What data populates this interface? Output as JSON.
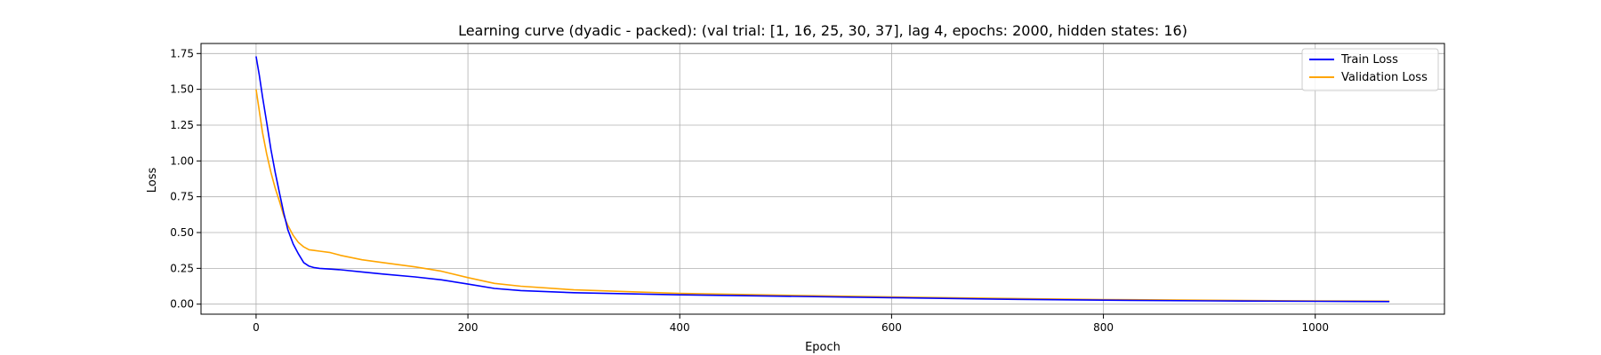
{
  "chart_data": {
    "type": "line",
    "title": "Learning curve (dyadic - packed): (val trial: [1, 16, 25, 30, 37], lag 4, epochs: 2000, hidden states: 16)",
    "xlabel": "Epoch",
    "ylabel": "Loss",
    "xlim": [
      -52,
      1122
    ],
    "ylim": [
      -0.07,
      1.82
    ],
    "xticks": [
      0,
      200,
      400,
      600,
      800,
      1000
    ],
    "yticks": [
      0.0,
      0.25,
      0.5,
      0.75,
      1.0,
      1.25,
      1.5,
      1.75
    ],
    "xtick_labels": [
      "0",
      "200",
      "400",
      "600",
      "800",
      "1000"
    ],
    "ytick_labels": [
      "0.00",
      "0.25",
      "0.50",
      "0.75",
      "1.00",
      "1.25",
      "1.50",
      "1.75"
    ],
    "grid": true,
    "legend_position": "top-right",
    "series": [
      {
        "name": "Train Loss",
        "color": "#0000ff",
        "x": [
          0,
          3,
          6,
          10,
          14,
          18,
          22,
          26,
          30,
          35,
          40,
          45,
          50,
          55,
          60,
          70,
          80,
          100,
          120,
          150,
          175,
          200,
          225,
          250,
          300,
          400,
          500,
          600,
          700,
          800,
          900,
          1000,
          1070
        ],
        "y": [
          1.73,
          1.6,
          1.45,
          1.27,
          1.08,
          0.92,
          0.78,
          0.64,
          0.52,
          0.42,
          0.35,
          0.29,
          0.265,
          0.255,
          0.25,
          0.245,
          0.24,
          0.225,
          0.21,
          0.19,
          0.17,
          0.14,
          0.11,
          0.095,
          0.08,
          0.065,
          0.055,
          0.045,
          0.035,
          0.028,
          0.023,
          0.02,
          0.018
        ]
      },
      {
        "name": "Validation Loss",
        "color": "#ffa500",
        "x": [
          0,
          3,
          6,
          10,
          14,
          18,
          22,
          26,
          30,
          35,
          40,
          45,
          50,
          55,
          60,
          70,
          80,
          100,
          120,
          150,
          175,
          200,
          225,
          250,
          300,
          400,
          500,
          600,
          700,
          800,
          900,
          1000,
          1070
        ],
        "y": [
          1.5,
          1.35,
          1.2,
          1.05,
          0.92,
          0.81,
          0.72,
          0.62,
          0.55,
          0.48,
          0.43,
          0.4,
          0.38,
          0.375,
          0.37,
          0.36,
          0.34,
          0.31,
          0.29,
          0.26,
          0.23,
          0.185,
          0.145,
          0.125,
          0.1,
          0.075,
          0.062,
          0.05,
          0.04,
          0.032,
          0.027,
          0.023,
          0.021
        ]
      }
    ]
  }
}
